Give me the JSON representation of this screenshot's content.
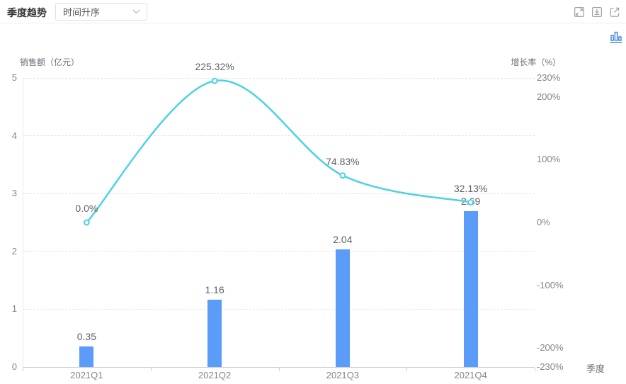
{
  "header": {
    "title": "季度趋势",
    "sort_dropdown": {
      "value": "时间升序"
    },
    "icons": {
      "expand": "expand",
      "download": "download",
      "open_external": "open-external"
    }
  },
  "chart_toolbar": {
    "active_chart_type": "bar-chart"
  },
  "colors": {
    "bar": "#5b9cf8",
    "line": "#4dd2e2",
    "chart_type_icon": "#3a83e0",
    "icon_gray": "#9da2a8"
  },
  "chart_data": {
    "type": "bar+line",
    "categories": [
      "2021Q1",
      "2021Q2",
      "2021Q3",
      "2021Q4"
    ],
    "series": [
      {
        "name": "销售额",
        "chart": "bar",
        "axis": "left",
        "color": "#5b9cf8",
        "values": [
          0.35,
          1.16,
          2.04,
          2.69
        ],
        "labels": [
          "0.35",
          "1.16",
          "2.04",
          "2.69"
        ]
      },
      {
        "name": "增长率",
        "chart": "line",
        "axis": "right",
        "color": "#4dd2e2",
        "values": [
          0.0,
          225.32,
          74.83,
          32.13
        ],
        "labels": [
          "0.0%",
          "225.32%",
          "74.83%",
          "32.13%"
        ]
      }
    ],
    "left_axis": {
      "name": "销售额（亿元）",
      "min": 0,
      "max": 5,
      "tick_values": [
        5,
        4,
        3,
        2,
        1,
        0
      ],
      "tick_labels": [
        "5",
        "4",
        "3",
        "2",
        "1",
        "0"
      ]
    },
    "right_axis": {
      "name": "增长率（%）",
      "min": -230,
      "max": 230,
      "tick_values": [
        230,
        200,
        100,
        0,
        -100,
        -200,
        -230
      ],
      "tick_labels": [
        "230%",
        "200%",
        "100%",
        "0%",
        "-100%",
        "-200%",
        "-230%"
      ]
    },
    "x_axis": {
      "name": "季度"
    },
    "grid": {
      "dashed": true,
      "legend": "none"
    }
  }
}
